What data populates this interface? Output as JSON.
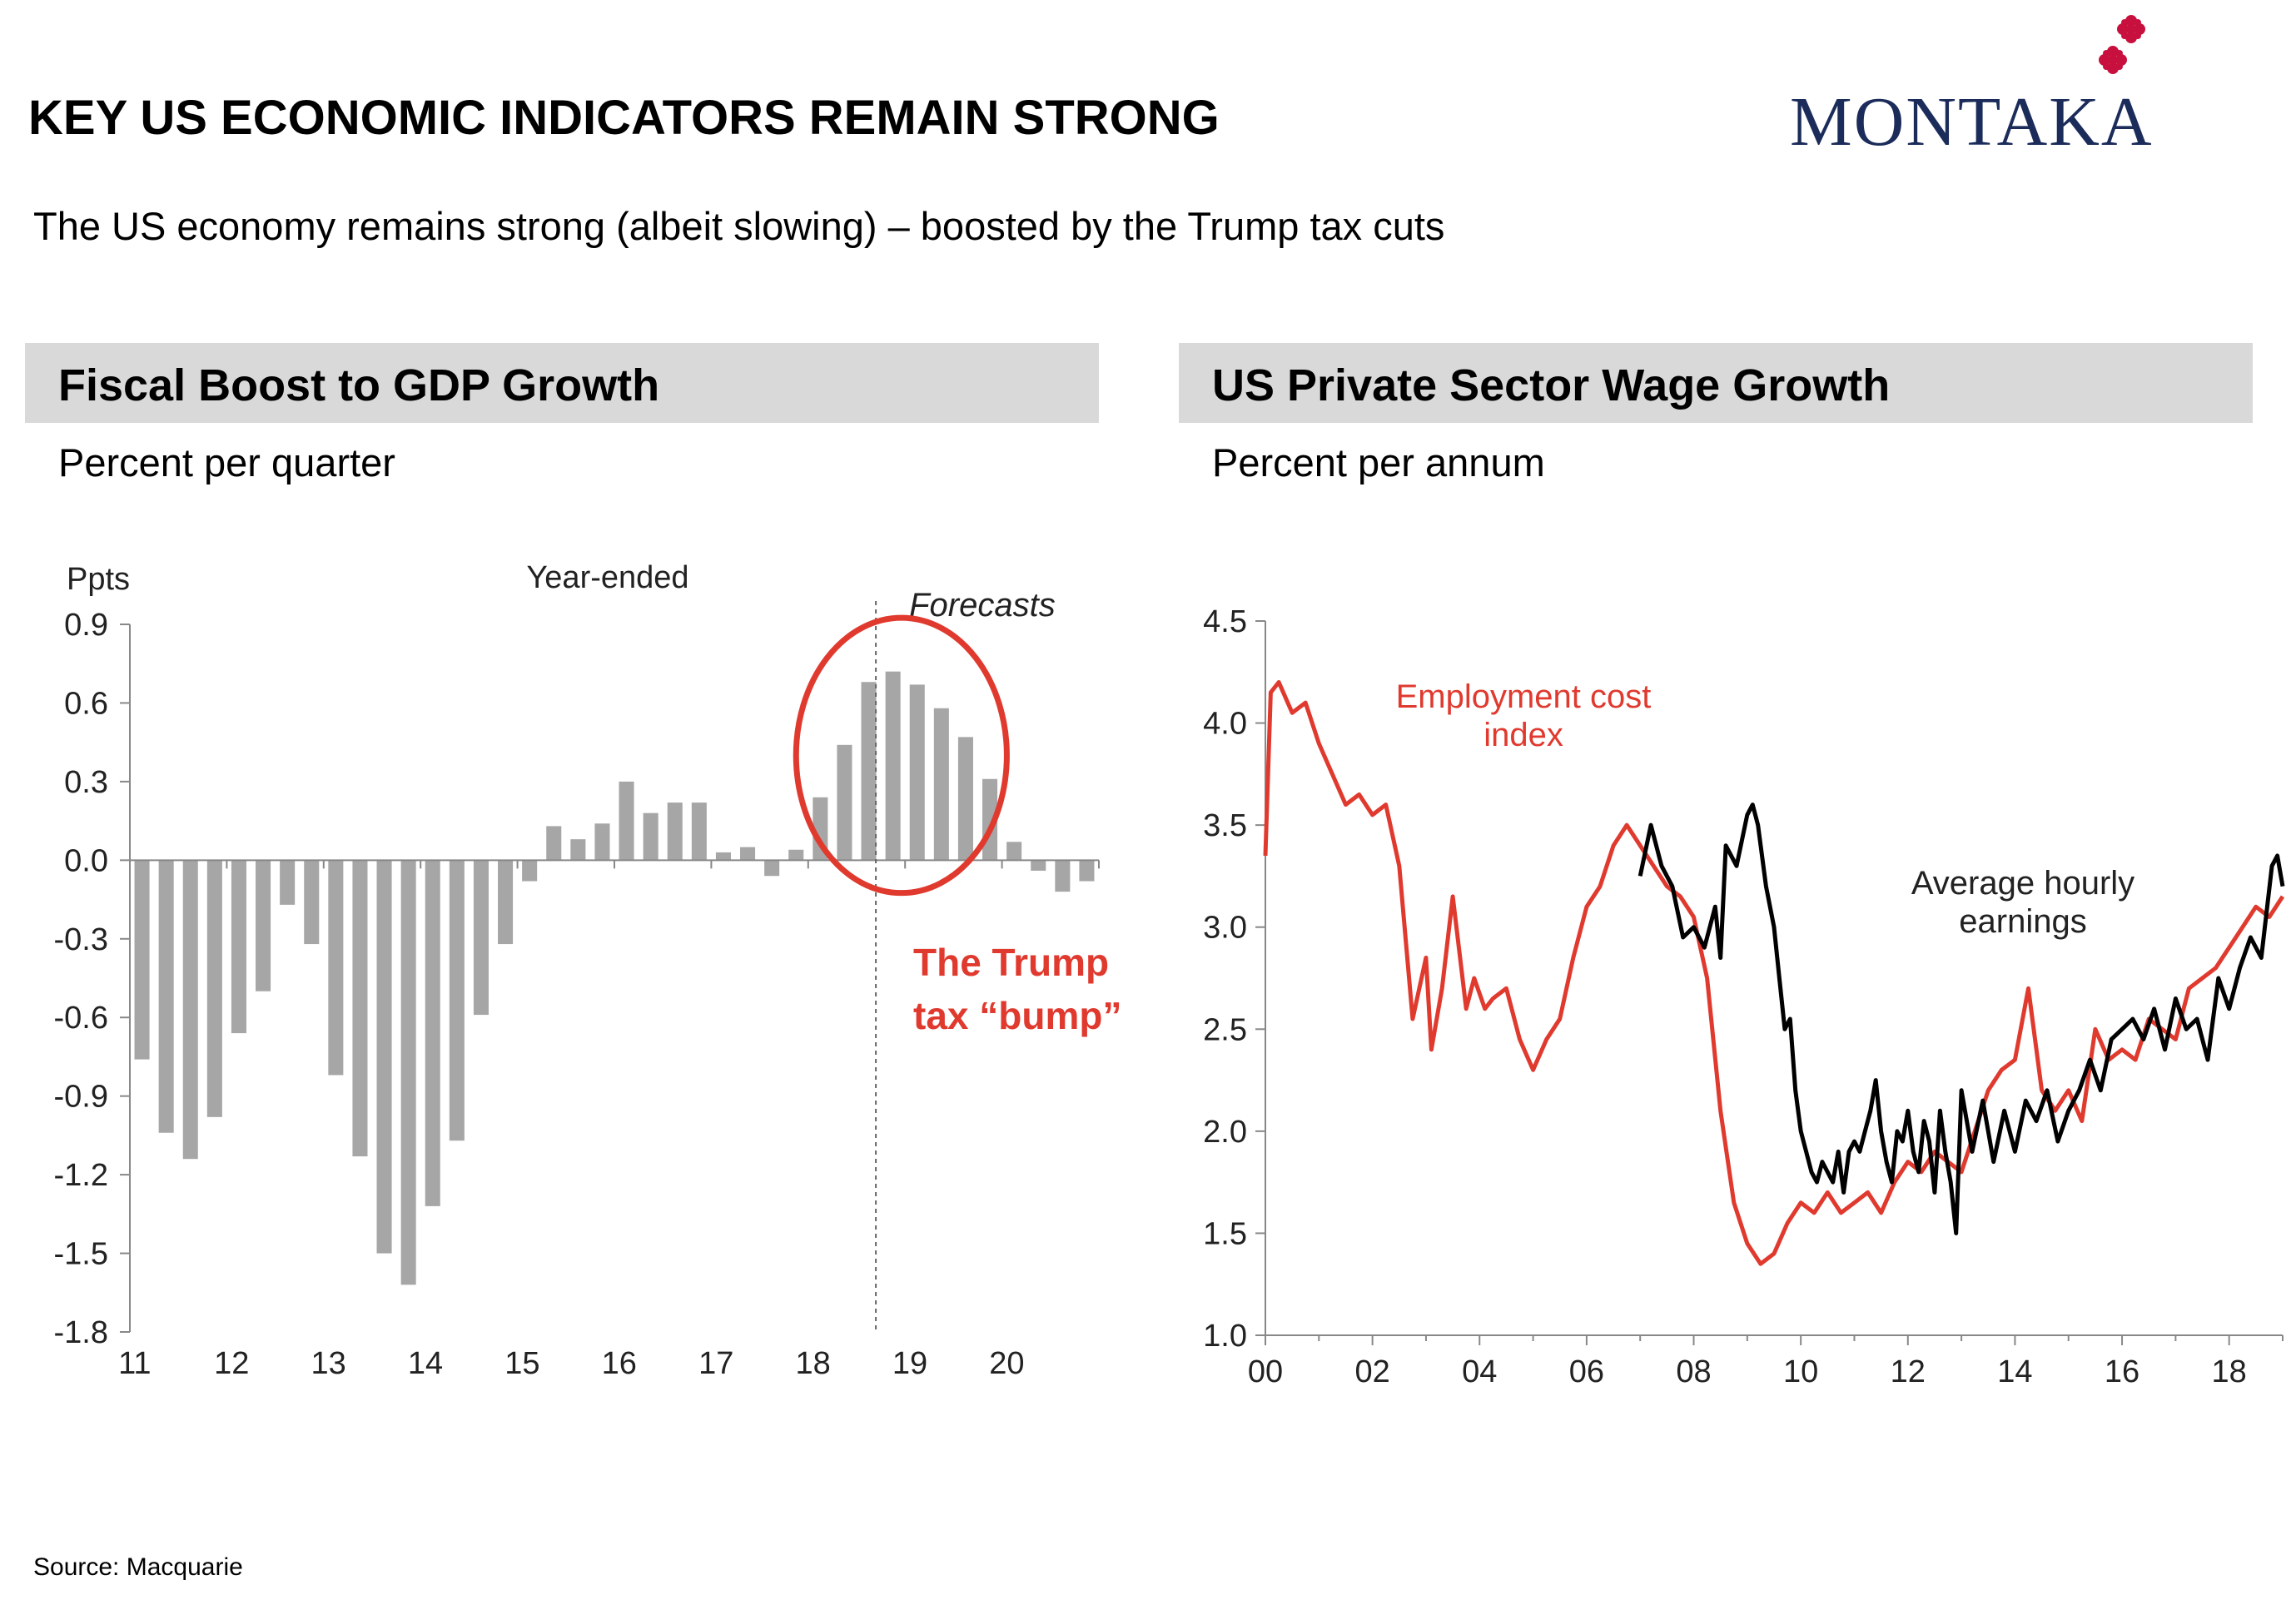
{
  "page": {
    "title": "KEY US ECONOMIC INDICATORS REMAIN STRONG",
    "subtitle": "The US economy remains strong (albeit slowing) – boosted by the Trump tax cuts",
    "logo": "MONTAKA",
    "source": "Source: Macquarie"
  },
  "colors": {
    "bar": "#a6a6a6",
    "accent_red": "#e03a2f",
    "logo_navy": "#1b2c5a",
    "header_gray": "#d9d9d9"
  },
  "panels": [
    {
      "header": "Fiscal Boost to GDP Growth",
      "subheader": "Percent per quarter"
    },
    {
      "header": "US Private Sector Wage Growth",
      "subheader": "Percent per annum"
    }
  ],
  "chart_data": [
    {
      "type": "bar",
      "ylabel": "Ppts",
      "annotation_top": "Year-ended",
      "forecast_label": "Forecasts",
      "callout": [
        "The Trump",
        "tax “bump”"
      ],
      "ylim": [
        -1.8,
        0.9
      ],
      "yticks": [
        0.9,
        0.6,
        0.3,
        0.0,
        -0.3,
        -0.6,
        -0.9,
        -1.2,
        -1.5,
        -1.8
      ],
      "ytick_labels": [
        "0.9",
        "0.6",
        "0.3",
        "0.0",
        "-0.3",
        "-0.6",
        "-0.9",
        "-1.2",
        "-1.5",
        "-1.8"
      ],
      "xtick_labels": [
        "11",
        "12",
        "13",
        "14",
        "15",
        "16",
        "17",
        "18",
        "19",
        "20"
      ],
      "x_start": 2011,
      "forecast_start_index": 31,
      "values": [
        -0.76,
        -1.04,
        -1.14,
        -0.98,
        -0.66,
        -0.5,
        -0.17,
        -0.32,
        -0.82,
        -1.13,
        -1.5,
        -1.62,
        -1.32,
        -1.07,
        -0.59,
        -0.32,
        -0.08,
        0.13,
        0.08,
        0.14,
        0.3,
        0.18,
        0.22,
        0.22,
        0.03,
        0.05,
        -0.06,
        0.04,
        0.24,
        0.44,
        0.68,
        0.72,
        0.67,
        0.58,
        0.47,
        0.31,
        0.07,
        -0.04,
        -0.12,
        -0.08
      ]
    },
    {
      "type": "line",
      "xlim": [
        2000,
        2019
      ],
      "ylim": [
        1.0,
        4.5
      ],
      "yticks": [
        4.5,
        4.0,
        3.5,
        3.0,
        2.5,
        2.0,
        1.5,
        1.0
      ],
      "ytick_labels": [
        "4.5",
        "4.0",
        "3.5",
        "3.0",
        "2.5",
        "2.0",
        "1.5",
        "1.0"
      ],
      "xtick_labels": [
        "00",
        "02",
        "04",
        "06",
        "08",
        "10",
        "12",
        "14",
        "16",
        "18"
      ],
      "series": [
        {
          "name": "Employment cost index",
          "label_lines": [
            "Employment cost",
            "index"
          ],
          "color": "#e03a2f",
          "x": [
            2000.0,
            2000.1,
            2000.25,
            2000.5,
            2000.75,
            2001.0,
            2001.25,
            2001.5,
            2001.75,
            2002.0,
            2002.25,
            2002.5,
            2002.75,
            2003.0,
            2003.1,
            2003.3,
            2003.5,
            2003.75,
            2003.9,
            2004.1,
            2004.25,
            2004.5,
            2004.75,
            2005.0,
            2005.25,
            2005.5,
            2005.75,
            2006.0,
            2006.25,
            2006.5,
            2006.75,
            2007.0,
            2007.25,
            2007.5,
            2007.75,
            2008.0,
            2008.25,
            2008.5,
            2008.75,
            2009.0,
            2009.25,
            2009.5,
            2009.75,
            2010.0,
            2010.25,
            2010.5,
            2010.75,
            2011.0,
            2011.25,
            2011.5,
            2011.75,
            2012.0,
            2012.25,
            2012.5,
            2012.75,
            2013.0,
            2013.25,
            2013.5,
            2013.75,
            2014.0,
            2014.25,
            2014.5,
            2014.75,
            2015.0,
            2015.25,
            2015.5,
            2015.75,
            2016.0,
            2016.25,
            2016.5,
            2016.75,
            2017.0,
            2017.25,
            2017.5,
            2017.75,
            2018.0,
            2018.25,
            2018.5,
            2018.75,
            2019.0
          ],
          "y": [
            3.35,
            4.15,
            4.2,
            4.05,
            4.1,
            3.9,
            3.75,
            3.6,
            3.65,
            3.55,
            3.6,
            3.3,
            2.55,
            2.85,
            2.4,
            2.7,
            3.15,
            2.6,
            2.75,
            2.6,
            2.65,
            2.7,
            2.45,
            2.3,
            2.45,
            2.55,
            2.85,
            3.1,
            3.2,
            3.4,
            3.5,
            3.4,
            3.3,
            3.2,
            3.15,
            3.05,
            2.75,
            2.1,
            1.65,
            1.45,
            1.35,
            1.4,
            1.55,
            1.65,
            1.6,
            1.7,
            1.6,
            1.65,
            1.7,
            1.6,
            1.75,
            1.85,
            1.8,
            1.9,
            1.85,
            1.8,
            2.0,
            2.2,
            2.3,
            2.35,
            2.7,
            2.2,
            2.1,
            2.2,
            2.05,
            2.5,
            2.35,
            2.4,
            2.35,
            2.55,
            2.5,
            2.45,
            2.7,
            2.75,
            2.8,
            2.9,
            3.0,
            3.1,
            3.05,
            3.15
          ]
        },
        {
          "name": "Average hourly earnings",
          "label_lines": [
            "Average hourly",
            "earnings"
          ],
          "color": "#000000",
          "x": [
            2007.0,
            2007.2,
            2007.4,
            2007.6,
            2007.8,
            2008.0,
            2008.2,
            2008.4,
            2008.5,
            2008.6,
            2008.8,
            2009.0,
            2009.1,
            2009.2,
            2009.35,
            2009.5,
            2009.6,
            2009.7,
            2009.8,
            2009.9,
            2010.0,
            2010.1,
            2010.2,
            2010.3,
            2010.4,
            2010.5,
            2010.6,
            2010.7,
            2010.8,
            2010.9,
            2011.0,
            2011.1,
            2011.2,
            2011.3,
            2011.4,
            2011.5,
            2011.6,
            2011.7,
            2011.8,
            2011.9,
            2012.0,
            2012.1,
            2012.2,
            2012.3,
            2012.4,
            2012.5,
            2012.6,
            2012.7,
            2012.8,
            2012.9,
            2013.0,
            2013.2,
            2013.4,
            2013.6,
            2013.8,
            2014.0,
            2014.2,
            2014.4,
            2014.6,
            2014.8,
            2015.0,
            2015.2,
            2015.4,
            2015.6,
            2015.8,
            2016.0,
            2016.2,
            2016.4,
            2016.6,
            2016.8,
            2017.0,
            2017.2,
            2017.4,
            2017.6,
            2017.8,
            2018.0,
            2018.2,
            2018.4,
            2018.6,
            2018.8,
            2018.9,
            2019.0
          ],
          "y": [
            3.25,
            3.5,
            3.3,
            3.2,
            2.95,
            3.0,
            2.9,
            3.1,
            2.85,
            3.4,
            3.3,
            3.55,
            3.6,
            3.5,
            3.2,
            3.0,
            2.75,
            2.5,
            2.55,
            2.2,
            2.0,
            1.9,
            1.8,
            1.75,
            1.85,
            1.8,
            1.75,
            1.9,
            1.7,
            1.9,
            1.95,
            1.9,
            2.0,
            2.1,
            2.25,
            2.0,
            1.85,
            1.75,
            2.0,
            1.95,
            2.1,
            1.9,
            1.8,
            2.05,
            1.95,
            1.7,
            2.1,
            1.9,
            1.75,
            1.5,
            2.2,
            1.9,
            2.15,
            1.85,
            2.1,
            1.9,
            2.15,
            2.05,
            2.2,
            1.95,
            2.1,
            2.2,
            2.35,
            2.2,
            2.45,
            2.5,
            2.55,
            2.45,
            2.6,
            2.4,
            2.65,
            2.5,
            2.55,
            2.35,
            2.75,
            2.6,
            2.8,
            2.95,
            2.85,
            3.3,
            3.35,
            3.2
          ]
        }
      ]
    }
  ]
}
